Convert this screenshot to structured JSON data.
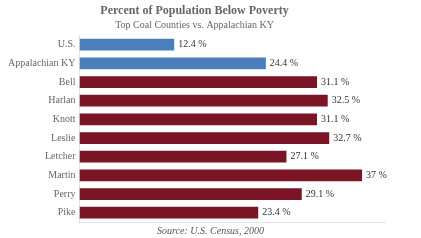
{
  "chart_data": {
    "type": "bar",
    "orientation": "horizontal",
    "title": "Percent of Population Below Poverty",
    "subtitle": "Top Coal Counties vs. Appalachian KY",
    "source": "Source: U.S. Census, 2000",
    "categories": [
      "U.S.",
      "Appalachian KY",
      "Bell",
      "Harlan",
      "Knott",
      "Leslie",
      "Letcher",
      "Martin",
      "Perry",
      "Pike"
    ],
    "values": [
      12.4,
      24.4,
      31.1,
      32.5,
      31.1,
      32.7,
      27.1,
      37.0,
      29.1,
      23.4
    ],
    "value_labels": [
      "12.4 %",
      "24.4 %",
      "31.1 %",
      "32.5 %",
      "31.1 %",
      "32.7 %",
      "27.1 %",
      "37 %",
      "29.1 %",
      "23.4 %"
    ],
    "colors": [
      "#4a7fbc",
      "#4a7fbc",
      "#7b1525",
      "#7b1525",
      "#7b1525",
      "#7b1525",
      "#7b1525",
      "#7b1525",
      "#7b1525",
      "#7b1525"
    ],
    "xlim": [
      0,
      40
    ],
    "grid": false,
    "legend": false,
    "data_labels": true,
    "tick_labels": "y"
  }
}
